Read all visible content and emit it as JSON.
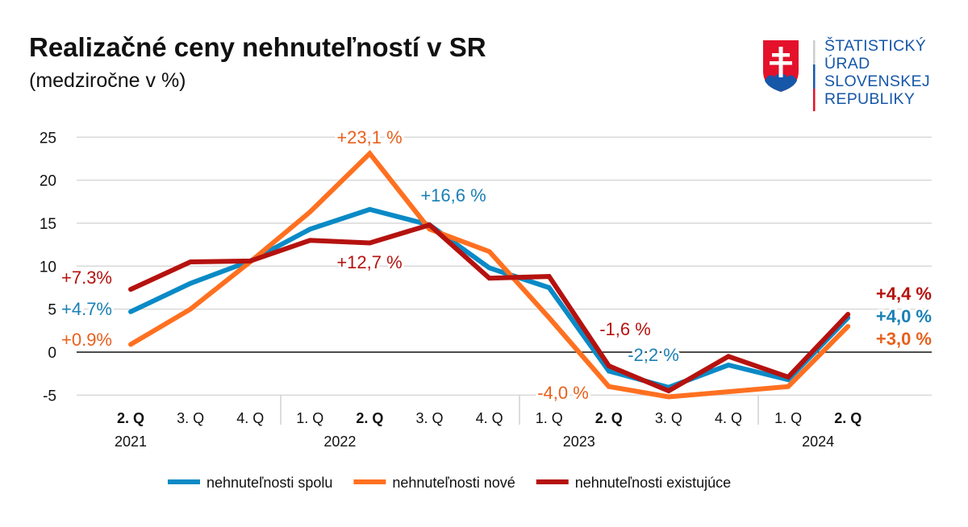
{
  "header": {
    "title": "Realizačné ceny nehnuteľností v SR",
    "subtitle": "(medziročne v %)"
  },
  "logo": {
    "lines": [
      "ŠTATISTICKÝ",
      "ÚRAD",
      "SLOVENSKEJ",
      "REPUBLIKY"
    ]
  },
  "chart_data": {
    "type": "line",
    "title": "Realizačné ceny nehnuteľností v SR",
    "subtitle": "(medziročne v %)",
    "ylim": [
      -5,
      25
    ],
    "yticks": [
      -5,
      0,
      5,
      10,
      15,
      20,
      25
    ],
    "grid": true,
    "legend_position": "bottom",
    "categories": [
      "2. Q",
      "3. Q",
      "4. Q",
      "1. Q",
      "2. Q",
      "3. Q",
      "4. Q",
      "1. Q",
      "2. Q",
      "3. Q",
      "4. Q",
      "1. Q",
      "2. Q"
    ],
    "bold_categories": [
      0,
      4,
      8,
      12
    ],
    "years": [
      {
        "label": "2021",
        "index": 0
      },
      {
        "label": "2022",
        "index": 3.5
      },
      {
        "label": "2023",
        "index": 7.5
      },
      {
        "label": "2024",
        "index": 11.5
      }
    ],
    "series": [
      {
        "name": "nehnuteľnosti spolu",
        "color": "#0a8ac6",
        "values": [
          4.7,
          8.0,
          10.6,
          14.3,
          16.6,
          14.8,
          9.8,
          7.5,
          -2.2,
          -4.1,
          -1.5,
          -3.2,
          4.0
        ]
      },
      {
        "name": "nehnuteľnosti nové",
        "color": "#ff7020",
        "values": [
          0.9,
          5.0,
          10.5,
          16.3,
          23.1,
          14.3,
          11.7,
          4.0,
          -4.0,
          -5.2,
          -4.6,
          -4.0,
          3.0
        ]
      },
      {
        "name": "nehnuteľnosti existujúce",
        "color": "#b5120f",
        "values": [
          7.3,
          10.5,
          10.6,
          13.0,
          12.7,
          14.8,
          8.6,
          8.8,
          -1.6,
          -4.5,
          -0.5,
          -2.9,
          4.4
        ]
      }
    ],
    "annotations": [
      {
        "text": "+7.3%",
        "color": "#b5120f",
        "bold": false
      },
      {
        "text": "+4.7%",
        "color": "#1a80b4",
        "bold": false
      },
      {
        "text": "+0.9%",
        "color": "#e8601c",
        "bold": false
      },
      {
        "text": "+23,1 %",
        "color": "#e8601c",
        "bold": false
      },
      {
        "text": "+16,6 %",
        "color": "#1a80b4",
        "bold": false
      },
      {
        "text": "+12,7 %",
        "color": "#b5120f",
        "bold": false
      },
      {
        "text": "-1,6 %",
        "color": "#b5120f",
        "bold": false
      },
      {
        "text": "-2,2 %",
        "color": "#1a80b4",
        "bold": false
      },
      {
        "text": "-4,0 %",
        "color": "#e8601c",
        "bold": false
      },
      {
        "text": "+4,4 %",
        "color": "#b5120f",
        "bold": true
      },
      {
        "text": "+4,0 %",
        "color": "#1a80b4",
        "bold": true
      },
      {
        "text": "+3,0 %",
        "color": "#e8601c",
        "bold": true
      }
    ]
  }
}
